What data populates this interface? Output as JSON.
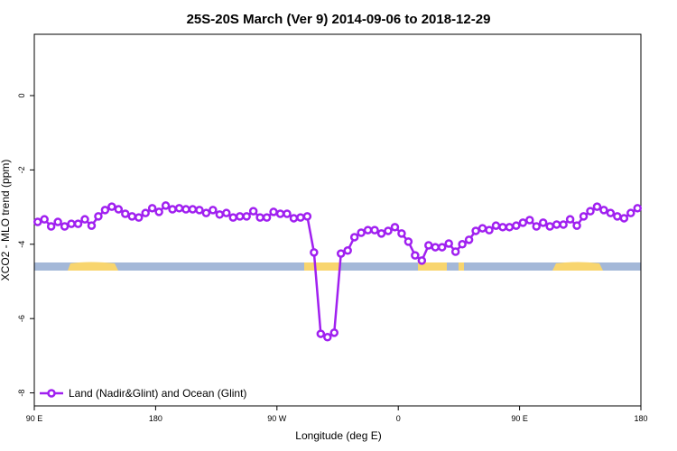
{
  "chart_data": {
    "type": "line",
    "title": "25S-20S March (Ver 9)   2014-09-06 to 2018-12-29",
    "x_label": "Longitude (deg E)",
    "y_label": "XCO2 - MLO trend (ppm)",
    "xlim": [
      90,
      540
    ],
    "ylim": [
      -8.35,
      1.65
    ],
    "xticks": [
      {
        "value": 90,
        "label": "90 E"
      },
      180,
      {
        "value": 270,
        "label": "90 W"
      },
      {
        "value": 360,
        "label": "0"
      },
      {
        "value": 450,
        "label": "90 E"
      },
      {
        "value": 540,
        "label": "180"
      }
    ],
    "yticks": [
      0,
      -2,
      -4,
      -6,
      -8
    ],
    "legend": "bottom-left",
    "x": [
      92.5,
      97.5,
      102.5,
      107.5,
      112.5,
      117.5,
      122.5,
      127.5,
      132.5,
      137.5,
      142.5,
      147.5,
      152.5,
      157.5,
      162.5,
      167.5,
      172.5,
      177.5,
      182.5,
      187.5,
      192.5,
      197.5,
      202.5,
      207.5,
      212.5,
      217.5,
      222.5,
      227.5,
      232.5,
      237.5,
      242.5,
      247.5,
      252.5,
      257.5,
      262.5,
      267.5,
      272.5,
      277.5,
      282.5,
      287.5,
      292.5,
      297.5,
      302.5,
      307.5,
      312.5,
      317.5,
      322.5,
      327.5,
      332.5,
      337.5,
      342.5,
      347.5,
      352.5,
      357.5,
      362.5,
      367.5,
      372.5,
      377.5,
      382.5,
      387.5,
      392.5,
      397.5,
      402.5,
      407.5,
      412.5,
      417.5,
      422.5,
      427.5,
      432.5,
      437.5,
      442.5,
      447.5,
      452.5,
      457.5,
      462.5,
      467.5,
      472.5,
      477.5,
      482.5,
      487.5,
      492.5,
      497.5,
      502.5,
      507.5,
      512.5,
      517.5,
      522.5,
      527.5,
      532.5,
      537.5
    ],
    "series": [
      {
        "name": "Land (Nadir&Glint) and Ocean (Glint)",
        "color": "#a020f0",
        "values": [
          -3.4,
          -3.33,
          -3.52,
          -3.4,
          -3.52,
          -3.45,
          -3.45,
          -3.33,
          -3.5,
          -3.25,
          -3.08,
          -2.99,
          -3.06,
          -3.18,
          -3.25,
          -3.28,
          -3.16,
          -3.03,
          -3.13,
          -2.96,
          -3.06,
          -3.03,
          -3.06,
          -3.06,
          -3.08,
          -3.16,
          -3.08,
          -3.2,
          -3.16,
          -3.28,
          -3.25,
          -3.25,
          -3.11,
          -3.28,
          -3.28,
          -3.13,
          -3.18,
          -3.18,
          -3.3,
          -3.28,
          -3.25,
          -4.22,
          -6.41,
          -6.5,
          -6.38,
          -4.25,
          -4.17,
          -3.81,
          -3.69,
          -3.62,
          -3.62,
          -3.71,
          -3.64,
          -3.54,
          -3.71,
          -3.93,
          -4.3,
          -4.44,
          -4.03,
          -4.08,
          -4.08,
          -3.98,
          -4.2,
          -4.0,
          -3.88,
          -3.64,
          -3.57,
          -3.62,
          -3.5,
          -3.54,
          -3.54,
          -3.5,
          -3.42,
          -3.35,
          -3.52,
          -3.42,
          -3.52,
          -3.47,
          -3.47,
          -3.33,
          -3.5,
          -3.25,
          -3.11,
          -2.99,
          -3.08,
          -3.16,
          -3.25,
          -3.3,
          -3.16,
          -3.03
        ]
      }
    ]
  }
}
